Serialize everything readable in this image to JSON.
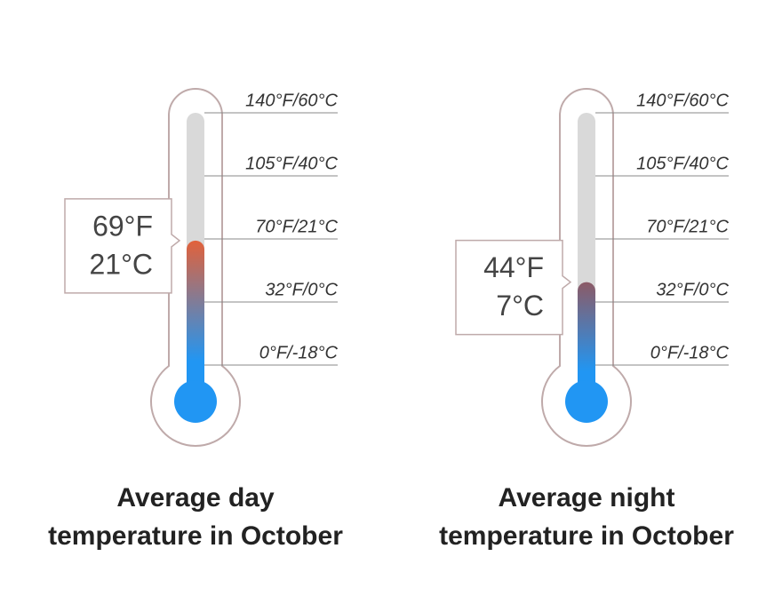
{
  "chart_data": [
    {
      "type": "thermometer",
      "title": [
        "Average day",
        "temperature in October"
      ],
      "values": [
        69
      ],
      "value_labels": [
        [
          "69°F",
          "21°C"
        ]
      ],
      "color": "#e2613a",
      "bulb_color": "#2196f3",
      "ylim": [
        0,
        140
      ],
      "yticks": [
        {
          "value": 140,
          "label": "140°F/60°C"
        },
        {
          "value": 105,
          "label": "105°F/40°C"
        },
        {
          "value": 70,
          "label": "70°F/21°C"
        },
        {
          "value": 32,
          "label": "32°F/0°C"
        },
        {
          "value": 0,
          "label": "0°F/-18°C"
        }
      ]
    },
    {
      "type": "thermometer",
      "title": [
        "Average night",
        "temperature in October"
      ],
      "values": [
        44
      ],
      "value_labels": [
        [
          "44°F",
          "7°C"
        ]
      ],
      "color": "#8c5a66",
      "bulb_color": "#2196f3",
      "ylim": [
        0,
        140
      ],
      "yticks": [
        {
          "value": 140,
          "label": "140°F/60°C"
        },
        {
          "value": 105,
          "label": "105°F/40°C"
        },
        {
          "value": 70,
          "label": "70°F/21°C"
        },
        {
          "value": 32,
          "label": "32°F/0°C"
        },
        {
          "value": 0,
          "label": "0°F/-18°C"
        }
      ]
    }
  ]
}
